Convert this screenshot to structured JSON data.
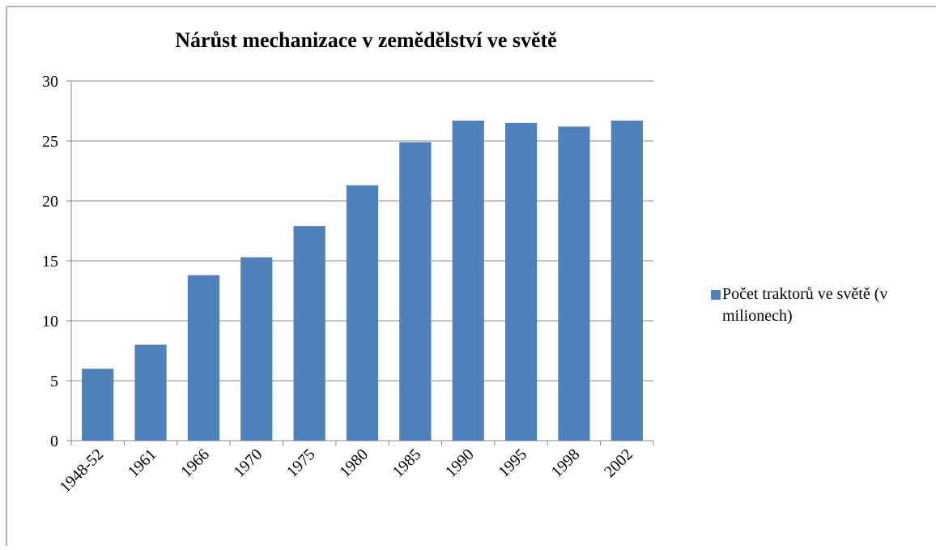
{
  "chart_data": {
    "type": "bar",
    "title": "Nárůst mechanizace v zemědělství ve světě",
    "categories": [
      "1948-52",
      "1961",
      "1966",
      "1970",
      "1975",
      "1980",
      "1985",
      "1990",
      "1995",
      "1998",
      "2002"
    ],
    "series": [
      {
        "name": "Počet traktorů ve světě (v milionech)",
        "color": "#4f81bd",
        "values": [
          6,
          8,
          13.8,
          15.3,
          17.9,
          21.3,
          24.9,
          26.7,
          26.5,
          26.2,
          26.7
        ]
      }
    ],
    "ylim": [
      0,
      30
    ],
    "yticks": [
      0,
      5,
      10,
      15,
      20,
      25,
      30
    ],
    "grid": true,
    "legend": "right"
  }
}
